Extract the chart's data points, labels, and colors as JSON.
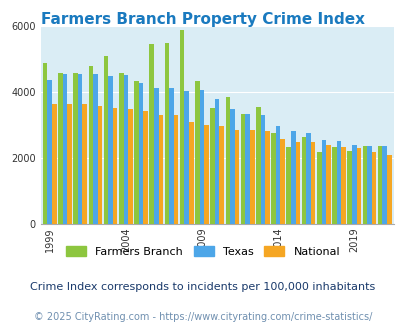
{
  "title": "Farmers Branch Property Crime Index",
  "title_color": "#1a7abf",
  "subtitle": "Crime Index corresponds to incidents per 100,000 inhabitants",
  "footer": "© 2025 CityRating.com - https://www.cityrating.com/crime-statistics/",
  "years": [
    1999,
    2000,
    2001,
    2002,
    2003,
    2004,
    2005,
    2006,
    2007,
    2008,
    2009,
    2010,
    2011,
    2012,
    2013,
    2014,
    2015,
    2016,
    2017,
    2018,
    2019,
    2020,
    2021
  ],
  "farmers_branch": [
    4900,
    4600,
    4600,
    4800,
    5100,
    4600,
    4350,
    5480,
    5500,
    5900,
    4350,
    3520,
    3860,
    3340,
    3560,
    2760,
    2350,
    2650,
    2180,
    2340,
    2220,
    2380,
    2380
  ],
  "texas": [
    4370,
    4560,
    4560,
    4560,
    4500,
    4520,
    4300,
    4120,
    4130,
    4040,
    4060,
    3800,
    3490,
    3360,
    3330,
    2970,
    2840,
    2760,
    2550,
    2520,
    2400,
    2380,
    2370
  ],
  "national": [
    3660,
    3650,
    3650,
    3600,
    3530,
    3490,
    3430,
    3330,
    3310,
    3090,
    3020,
    2970,
    2850,
    2860,
    2820,
    2600,
    2510,
    2490,
    2420,
    2360,
    2310,
    2180,
    2100
  ],
  "bar_colors": {
    "farmers_branch": "#8dc63f",
    "texas": "#4da6e8",
    "national": "#f5a623"
  },
  "bg_color": "#daedf5",
  "ylim": [
    0,
    6000
  ],
  "yticks": [
    0,
    2000,
    4000,
    6000
  ],
  "xtick_years": [
    1999,
    2004,
    2009,
    2014,
    2019
  ],
  "legend_labels": [
    "Farmers Branch",
    "Texas",
    "National"
  ],
  "legend_colors": [
    "#8dc63f",
    "#4da6e8",
    "#f5a623"
  ],
  "subtitle_color": "#1a3a6b",
  "footer_color": "#7090b0",
  "title_fontsize": 11,
  "subtitle_fontsize": 8,
  "footer_fontsize": 7
}
